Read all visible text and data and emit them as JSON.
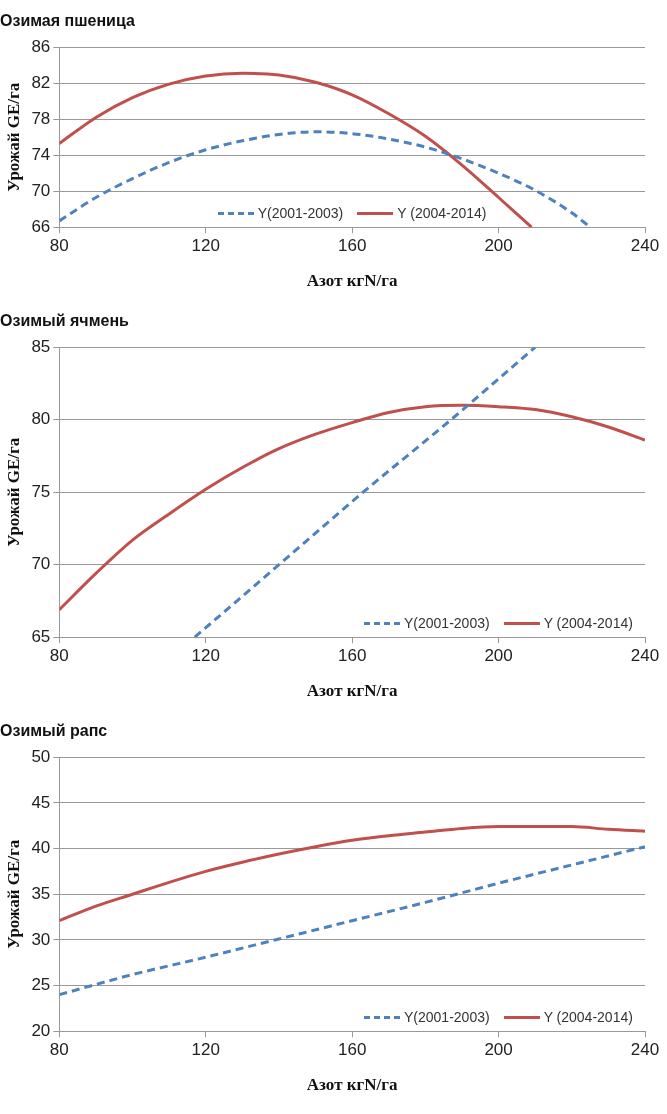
{
  "chart_data": [
    {
      "type": "line",
      "title": "Озимая пшеница",
      "xlabel": "Азот кгN/га",
      "ylabel": "Урожай GE/га",
      "xlim": [
        80,
        240
      ],
      "xticks": [
        80,
        120,
        160,
        200,
        240
      ],
      "ylim": [
        66,
        86
      ],
      "yticks": [
        66,
        70,
        74,
        78,
        82,
        86
      ],
      "grid": "y",
      "legend": "bottom",
      "marker": "none",
      "series": [
        {
          "name": "Y(2001-2003)",
          "color": "#4f81bd",
          "line_style": "dashed",
          "x": [
            80,
            90,
            100,
            110,
            120,
            130,
            140,
            150,
            160,
            170,
            180,
            190,
            200,
            210,
            220,
            225
          ],
          "values": [
            66.7,
            69.3,
            71.4,
            73.2,
            74.6,
            75.6,
            76.3,
            76.6,
            76.4,
            75.8,
            74.9,
            73.6,
            72.0,
            70.1,
            67.6,
            66.0
          ]
        },
        {
          "name": "Y (2004-2014)",
          "color": "#c0504d",
          "line_style": "solid",
          "x": [
            80,
            90,
            100,
            110,
            120,
            130,
            140,
            150,
            160,
            170,
            180,
            190,
            200,
            209
          ],
          "values": [
            75.3,
            78.2,
            80.4,
            81.9,
            82.8,
            83.1,
            82.9,
            82.1,
            80.7,
            78.6,
            76.1,
            72.9,
            69.3,
            66.0
          ]
        }
      ]
    },
    {
      "type": "line",
      "title": "Озимый ячмень",
      "xlabel": "Азот кгN/га",
      "ylabel": "Урожай GE/га",
      "xlim": [
        80,
        240
      ],
      "xticks": [
        80,
        120,
        160,
        200,
        240
      ],
      "ylim": [
        65,
        85
      ],
      "yticks": [
        65,
        70,
        75,
        80,
        85
      ],
      "grid": "y",
      "legend": "bottom right",
      "marker": "none",
      "series": [
        {
          "name": "Y(2001-2003)",
          "color": "#4f81bd",
          "line_style": "dashed",
          "x": [
            117,
            140,
            163,
            187,
            210
          ],
          "values": [
            65,
            70,
            75,
            80,
            85
          ]
        },
        {
          "name": "Y (2004-2014)",
          "color": "#c0504d",
          "line_style": "solid",
          "x": [
            80,
            90,
            100,
            110,
            120,
            130,
            140,
            150,
            160,
            170,
            180,
            190,
            200,
            210,
            220,
            230,
            240
          ],
          "values": [
            66.9,
            69.4,
            71.7,
            73.5,
            75.2,
            76.7,
            78.0,
            79.0,
            79.8,
            80.5,
            80.9,
            81.0,
            80.9,
            80.7,
            80.2,
            79.5,
            78.6
          ]
        }
      ]
    },
    {
      "type": "line",
      "title": "Озимый рапс",
      "xlabel": "Азот кгN/га",
      "ylabel": "Урожай GE/га",
      "xlim": [
        80,
        240
      ],
      "xticks": [
        80,
        120,
        160,
        200,
        240
      ],
      "ylim": [
        20,
        50
      ],
      "yticks": [
        20,
        25,
        30,
        35,
        40,
        45,
        50
      ],
      "grid": "y",
      "legend": "bottom right",
      "marker": "none",
      "series": [
        {
          "name": "Y(2001-2003)",
          "color": "#4f81bd",
          "line_style": "dashed",
          "x": [
            80,
            100,
            120,
            140,
            160,
            180,
            200,
            220,
            240
          ],
          "values": [
            24.0,
            26.2,
            28.1,
            30.1,
            32.1,
            34.1,
            36.2,
            38.2,
            40.2
          ]
        },
        {
          "name": "Y (2004-2014)",
          "color": "#c0504d",
          "line_style": "solid",
          "x": [
            80,
            90,
            100,
            110,
            120,
            130,
            140,
            150,
            160,
            170,
            180,
            190,
            200,
            210,
            220,
            230,
            240
          ],
          "values": [
            32.1,
            33.7,
            35.0,
            36.3,
            37.5,
            38.5,
            39.4,
            40.2,
            40.9,
            41.4,
            41.8,
            42.2,
            42.4,
            42.4,
            42.4,
            42.1,
            41.9
          ]
        }
      ]
    }
  ]
}
